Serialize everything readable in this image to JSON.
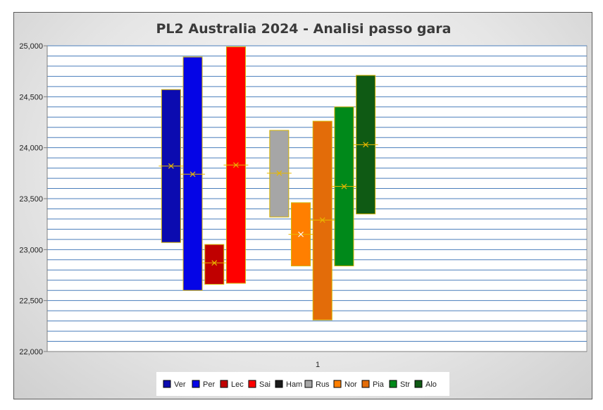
{
  "chart_data": {
    "type": "bar",
    "subtype": "floating-range",
    "title": "PL2 Australia 2024 - Analisi passo gara",
    "categories": [
      "1"
    ],
    "ylim": [
      22000,
      25000
    ],
    "yticks": [
      {
        "value": 22000,
        "label": "22,000"
      },
      {
        "value": 22500,
        "label": "22,500"
      },
      {
        "value": 23000,
        "label": "23,000"
      },
      {
        "value": 23500,
        "label": "23,500"
      },
      {
        "value": 24000,
        "label": "24,000"
      },
      {
        "value": 24500,
        "label": "24,500"
      },
      {
        "value": 25000,
        "label": "25,000"
      }
    ],
    "minor_grid_step": 100,
    "grid": true,
    "legend_position": "bottom",
    "series": [
      {
        "name": "Ver",
        "color": "#0b0bb0",
        "low": 23070,
        "high": 24570,
        "mean": 23820
      },
      {
        "name": "Per",
        "color": "#0505e6",
        "low": 22600,
        "high": 24890,
        "mean": 23740
      },
      {
        "name": "Lec",
        "color": "#c00000",
        "low": 22660,
        "high": 23050,
        "mean": 22870
      },
      {
        "name": "Sai",
        "color": "#ff0000",
        "low": 22670,
        "high": 24990,
        "mean": 23830
      },
      {
        "name": "Ham",
        "color": "#1a1a1a",
        "low": null,
        "high": null,
        "mean": null
      },
      {
        "name": "Rus",
        "color": "#a6a6a6",
        "low": 23320,
        "high": 24170,
        "mean": 23750
      },
      {
        "name": "Nor",
        "color": "#ff7f00",
        "low": 22840,
        "high": 23460,
        "mean": 23150
      },
      {
        "name": "Pia",
        "color": "#e36c09",
        "low": 22310,
        "high": 24260,
        "mean": 23290
      },
      {
        "name": "Str",
        "color": "#00891a",
        "low": 22840,
        "high": 24400,
        "mean": 23620
      },
      {
        "name": "Alo",
        "color": "#0f5a14",
        "low": 23350,
        "high": 24710,
        "mean": 24030
      }
    ]
  }
}
